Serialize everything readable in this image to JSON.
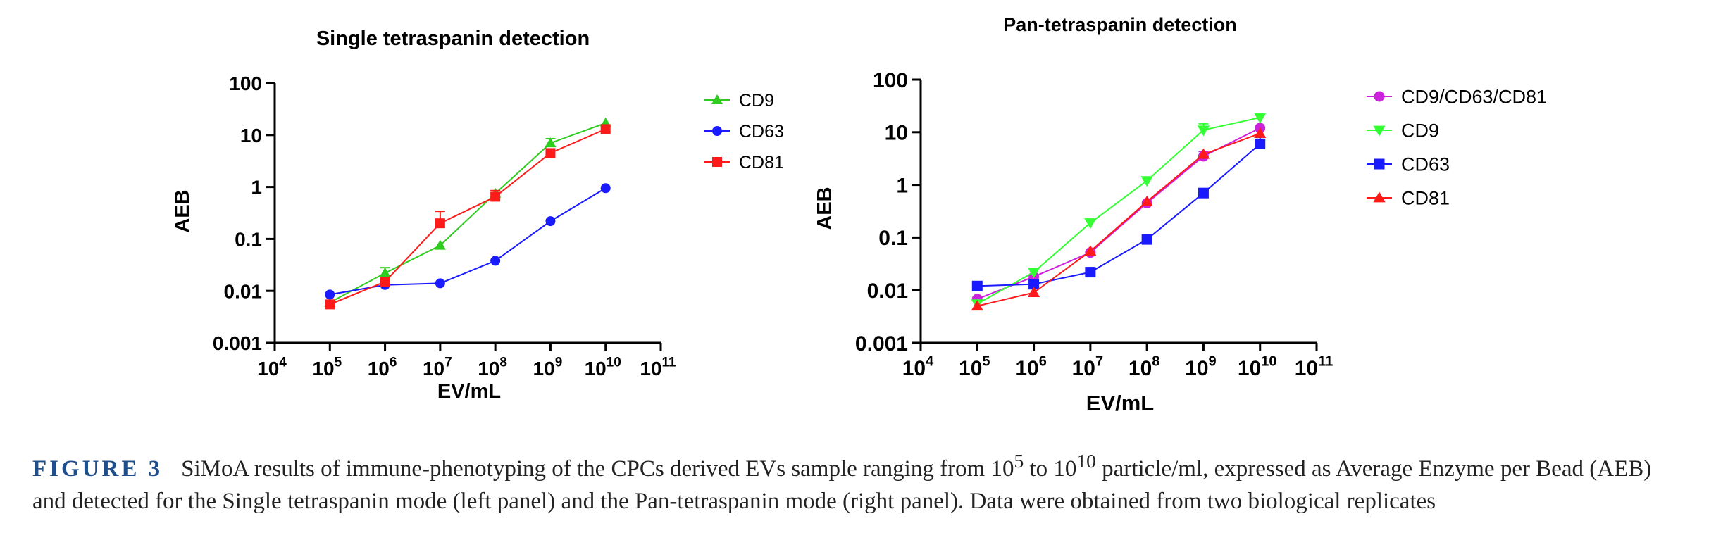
{
  "chart_data": [
    {
      "type": "line",
      "title": "Single tetraspanin detection",
      "xlabel": "EV/mL",
      "ylabel": "AEB",
      "xscale": "log",
      "yscale": "log",
      "xlim_exp": [
        4,
        11
      ],
      "ylim_exp": [
        -3,
        2
      ],
      "x_tick_labels": [
        {
          "base": "10",
          "exp": "4"
        },
        {
          "base": "10",
          "exp": "5"
        },
        {
          "base": "10",
          "exp": "6"
        },
        {
          "base": "10",
          "exp": "7"
        },
        {
          "base": "10",
          "exp": "8"
        },
        {
          "base": "10",
          "exp": "9"
        },
        {
          "base": "10",
          "exp": "10"
        },
        {
          "base": "10",
          "exp": "11"
        }
      ],
      "y_tick_labels": [
        "0.001",
        "0.01",
        "0.1",
        "1",
        "10",
        "100"
      ],
      "legend_position": "right",
      "x": [
        100000,
        1000000,
        10000000,
        100000000,
        1000000000,
        10000000000
      ],
      "series": [
        {
          "name": "CD9",
          "color": "#2ecc1f",
          "marker": "triangle-up",
          "values": [
            0.006,
            0.022,
            0.075,
            0.75,
            7.0,
            17.0
          ],
          "err": [
            0,
            0.006,
            0,
            0,
            1.5,
            0
          ]
        },
        {
          "name": "CD63",
          "color": "#1a1aff",
          "marker": "circle",
          "values": [
            0.0085,
            0.013,
            0.014,
            0.038,
            0.22,
            0.95
          ],
          "err": [
            0,
            0,
            0,
            0,
            0,
            0
          ]
        },
        {
          "name": "CD81",
          "color": "#ff1a1a",
          "marker": "square",
          "values": [
            0.0055,
            0.015,
            0.2,
            0.65,
            4.5,
            13.0
          ],
          "err": [
            0,
            0,
            0.14,
            0.2,
            0,
            0
          ]
        }
      ]
    },
    {
      "type": "line",
      "title": "Pan-tetraspanin detection",
      "xlabel": "EV/mL",
      "ylabel": "AEB",
      "xscale": "log",
      "yscale": "log",
      "xlim_exp": [
        4,
        11
      ],
      "ylim_exp": [
        -3,
        2
      ],
      "x_tick_labels": [
        {
          "base": "10",
          "exp": "4"
        },
        {
          "base": "10",
          "exp": "5"
        },
        {
          "base": "10",
          "exp": "6"
        },
        {
          "base": "10",
          "exp": "7"
        },
        {
          "base": "10",
          "exp": "8"
        },
        {
          "base": "10",
          "exp": "9"
        },
        {
          "base": "10",
          "exp": "10"
        },
        {
          "base": "10",
          "exp": "11"
        }
      ],
      "y_tick_labels": [
        "0.001",
        "0.01",
        "0.1",
        "1",
        "10",
        "100"
      ],
      "legend_position": "right",
      "x": [
        100000,
        1000000,
        10000000,
        100000000,
        1000000000,
        10000000000
      ],
      "series": [
        {
          "name": "CD9/CD63/CD81",
          "color": "#cc22dd",
          "marker": "circle",
          "values": [
            0.0068,
            0.018,
            0.052,
            0.45,
            3.5,
            12.0
          ],
          "err": [
            0,
            0,
            0,
            0,
            0.8,
            0
          ]
        },
        {
          "name": "CD9",
          "color": "#33ff33",
          "marker": "triangle-down",
          "values": [
            0.0055,
            0.022,
            0.19,
            1.2,
            11.0,
            19.0
          ],
          "err": [
            0,
            0,
            0,
            0,
            3.5,
            0
          ]
        },
        {
          "name": "CD63",
          "color": "#1a1aff",
          "marker": "square",
          "values": [
            0.012,
            0.013,
            0.022,
            0.092,
            0.7,
            6.0
          ],
          "err": [
            0,
            0,
            0,
            0,
            0,
            2.0
          ]
        },
        {
          "name": "CD81",
          "color": "#ff1a1a",
          "marker": "triangle-up",
          "values": [
            0.005,
            0.009,
            0.055,
            0.48,
            3.8,
            9.5
          ],
          "err": [
            0,
            0,
            0,
            0,
            0,
            0
          ]
        }
      ]
    }
  ],
  "caption": {
    "label": "FIGURE 3",
    "text_1": "SiMoA results of immune-phenotyping of the CPCs derived EVs sample ranging from 10",
    "sup_1": "5",
    "text_2": " to 10",
    "sup_2": "10",
    "text_3": " particle/ml, expressed as Average Enzyme per Bead (AEB) and detected for the Single tetraspanin mode (left panel) and the Pan-tetraspanin mode (right panel). Data were obtained from two biological replicates"
  }
}
